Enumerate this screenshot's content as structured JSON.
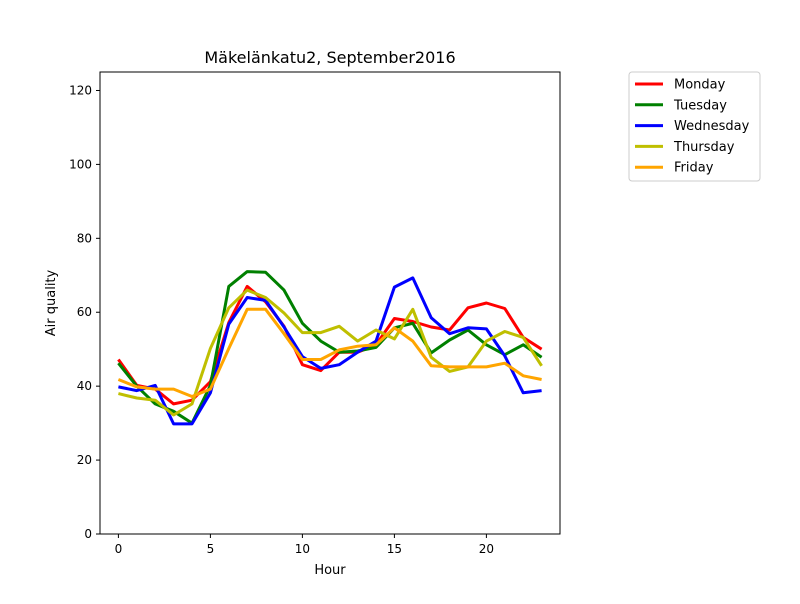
{
  "chart_data": {
    "type": "line",
    "title": "Mäkelänkatu2, September2016",
    "xlabel": "Hour",
    "ylabel": "Air quality",
    "xlim": [
      -1,
      24
    ],
    "ylim": [
      0,
      125
    ],
    "xticks": [
      0,
      5,
      10,
      15,
      20
    ],
    "yticks": [
      0,
      20,
      40,
      60,
      80,
      100,
      120
    ],
    "grid": false,
    "legend_position": "outside-top-right",
    "x": [
      0,
      1,
      2,
      3,
      4,
      5,
      6,
      7,
      8,
      9,
      10,
      11,
      12,
      13,
      14,
      15,
      16,
      17,
      18,
      19,
      20,
      21,
      22,
      23
    ],
    "series": [
      {
        "name": "Monday",
        "color": "#ff0000",
        "values": [
          47.2,
          40.2,
          39.2,
          35.2,
          36.2,
          41.2,
          57.2,
          67.0,
          62.8,
          56.2,
          45.8,
          44.2,
          49.2,
          49.2,
          51.2,
          58.3,
          57.5,
          56.0,
          55.2,
          61.2,
          62.5,
          61.0,
          53.2,
          50.0
        ]
      },
      {
        "name": "Tuesday",
        "color": "#008000",
        "values": [
          46.2,
          40.0,
          35.2,
          33.2,
          30.0,
          40.2,
          67.0,
          71.0,
          70.8,
          66.0,
          57.0,
          52.2,
          49.2,
          49.5,
          50.5,
          55.8,
          57.0,
          49.0,
          52.5,
          55.2,
          51.2,
          48.5,
          51.2,
          47.8
        ]
      },
      {
        "name": "Wednesday",
        "color": "#0000ff",
        "values": [
          39.8,
          38.8,
          40.2,
          29.8,
          29.8,
          38.2,
          56.8,
          64.0,
          63.2,
          56.0,
          48.0,
          44.8,
          45.8,
          49.2,
          52.2,
          66.8,
          69.3,
          58.5,
          54.2,
          55.8,
          55.5,
          48.2,
          38.2,
          38.8
        ]
      },
      {
        "name": "Thursday",
        "color": "#bfbf00",
        "values": [
          38.0,
          36.8,
          36.2,
          32.2,
          35.2,
          50.2,
          61.2,
          66.0,
          64.0,
          59.8,
          54.5,
          54.5,
          56.2,
          52.2,
          55.2,
          52.8,
          60.8,
          47.8,
          44.0,
          45.2,
          52.2,
          54.8,
          53.2,
          45.5
        ]
      },
      {
        "name": "Friday",
        "color": "#ffa500",
        "values": [
          41.8,
          39.8,
          39.2,
          39.2,
          37.2,
          39.2,
          50.2,
          60.8,
          60.8,
          54.2,
          47.2,
          47.2,
          49.8,
          50.8,
          51.2,
          55.8,
          52.2,
          45.5,
          45.2,
          45.2,
          45.2,
          46.2,
          42.8,
          41.8
        ]
      }
    ]
  }
}
